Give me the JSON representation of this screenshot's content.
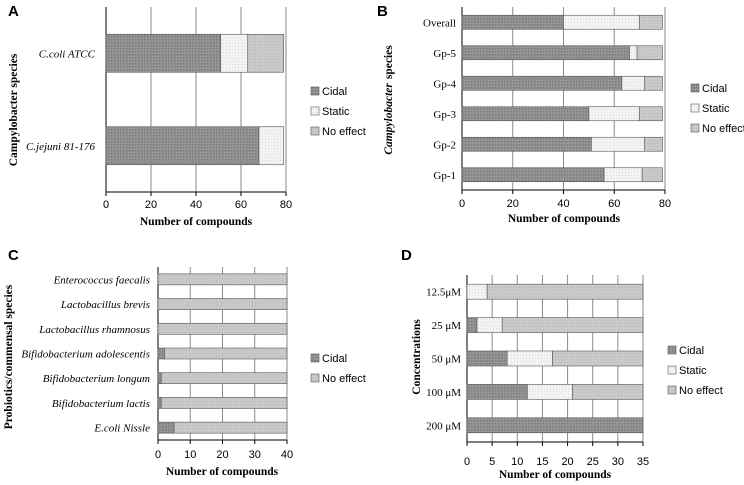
{
  "colors": {
    "cidal": "#8e8e8e",
    "static": "#f1f1f1",
    "noeffect": "#c7c7c7",
    "grid": "#8a8a8a"
  },
  "chart_data": [
    {
      "panel": "A",
      "type": "bar",
      "orientation": "horizontal",
      "stacked": true,
      "categories_italic": true,
      "categories": [
        "C.coli ATCC",
        "C.jejuni 81-176"
      ],
      "series": [
        {
          "name": "Cidal",
          "key": "cidal",
          "values": [
            51,
            68
          ]
        },
        {
          "name": "Static",
          "key": "static",
          "values": [
            12,
            11
          ]
        },
        {
          "name": "No effect",
          "key": "noeffect",
          "values": [
            16,
            0
          ]
        }
      ],
      "xlabel": "Number of compounds",
      "ylabel": "Campylobacter species",
      "xlim": [
        0,
        80
      ],
      "xticks": [
        "0",
        "20",
        "40",
        "60",
        "80"
      ],
      "grid": true,
      "legend": "right"
    },
    {
      "panel": "B",
      "type": "bar",
      "orientation": "horizontal",
      "stacked": true,
      "categories_italic": false,
      "categories": [
        "Overall",
        "Gp-5",
        "Gp-4",
        "Gp-3",
        "Gp-2",
        "Gp-1"
      ],
      "series": [
        {
          "name": "Cidal",
          "key": "cidal",
          "values": [
            40,
            66,
            63,
            50,
            51,
            56
          ]
        },
        {
          "name": "Static",
          "key": "static",
          "values": [
            30,
            3,
            9,
            20,
            21,
            15
          ]
        },
        {
          "name": "No effect",
          "key": "noeffect",
          "values": [
            9,
            10,
            7,
            9,
            7,
            8
          ]
        }
      ],
      "xlabel": "Number of compounds",
      "ylabel_italic_part": "Campylobacter",
      "ylabel_rest": "species",
      "xlim": [
        0,
        80
      ],
      "xticks": [
        "0",
        "20",
        "40",
        "60",
        "80"
      ],
      "grid": true,
      "legend": "right"
    },
    {
      "panel": "C",
      "type": "bar",
      "orientation": "horizontal",
      "stacked": true,
      "categories_italic": true,
      "categories": [
        "Enterococcus faecalis",
        "Lactobacillus brevis",
        "Lactobacillus rhamnosus",
        "Bifidobacterium adolescentis",
        "Bifidobacterium longum",
        "Bifidobacterium lactis",
        "E.coli Nissle"
      ],
      "series": [
        {
          "name": "Cidal",
          "key": "cidal",
          "values": [
            0,
            0,
            0,
            2,
            1,
            1,
            5
          ]
        },
        {
          "name": "No effect",
          "key": "noeffect",
          "values": [
            40,
            40,
            40,
            38,
            39,
            39,
            35
          ]
        }
      ],
      "xlabel": "Number of compounds",
      "ylabel": "Probiotics/commensal species",
      "xlim": [
        0,
        40
      ],
      "xticks": [
        "0",
        "10",
        "20",
        "30",
        "40"
      ],
      "grid": true,
      "legend": "right"
    },
    {
      "panel": "D",
      "type": "bar",
      "orientation": "horizontal",
      "stacked": true,
      "categories_italic": false,
      "categories": [
        "12.5μM",
        "25 μM",
        "50 μM",
        "100 μM",
        "200 μM"
      ],
      "series": [
        {
          "name": "Cidal",
          "key": "cidal",
          "values": [
            0,
            2,
            8,
            12,
            35
          ]
        },
        {
          "name": "Static",
          "key": "static",
          "values": [
            4,
            5,
            9,
            9,
            0
          ]
        },
        {
          "name": "No effect",
          "key": "noeffect",
          "values": [
            31,
            28,
            18,
            14,
            0
          ]
        }
      ],
      "xlabel": "Number of compounds",
      "ylabel": "Concentrations",
      "xlim": [
        0,
        35
      ],
      "xticks": [
        "0",
        "5",
        "10",
        "15",
        "20",
        "25",
        "30",
        "35"
      ],
      "grid": true,
      "legend": "right"
    }
  ]
}
